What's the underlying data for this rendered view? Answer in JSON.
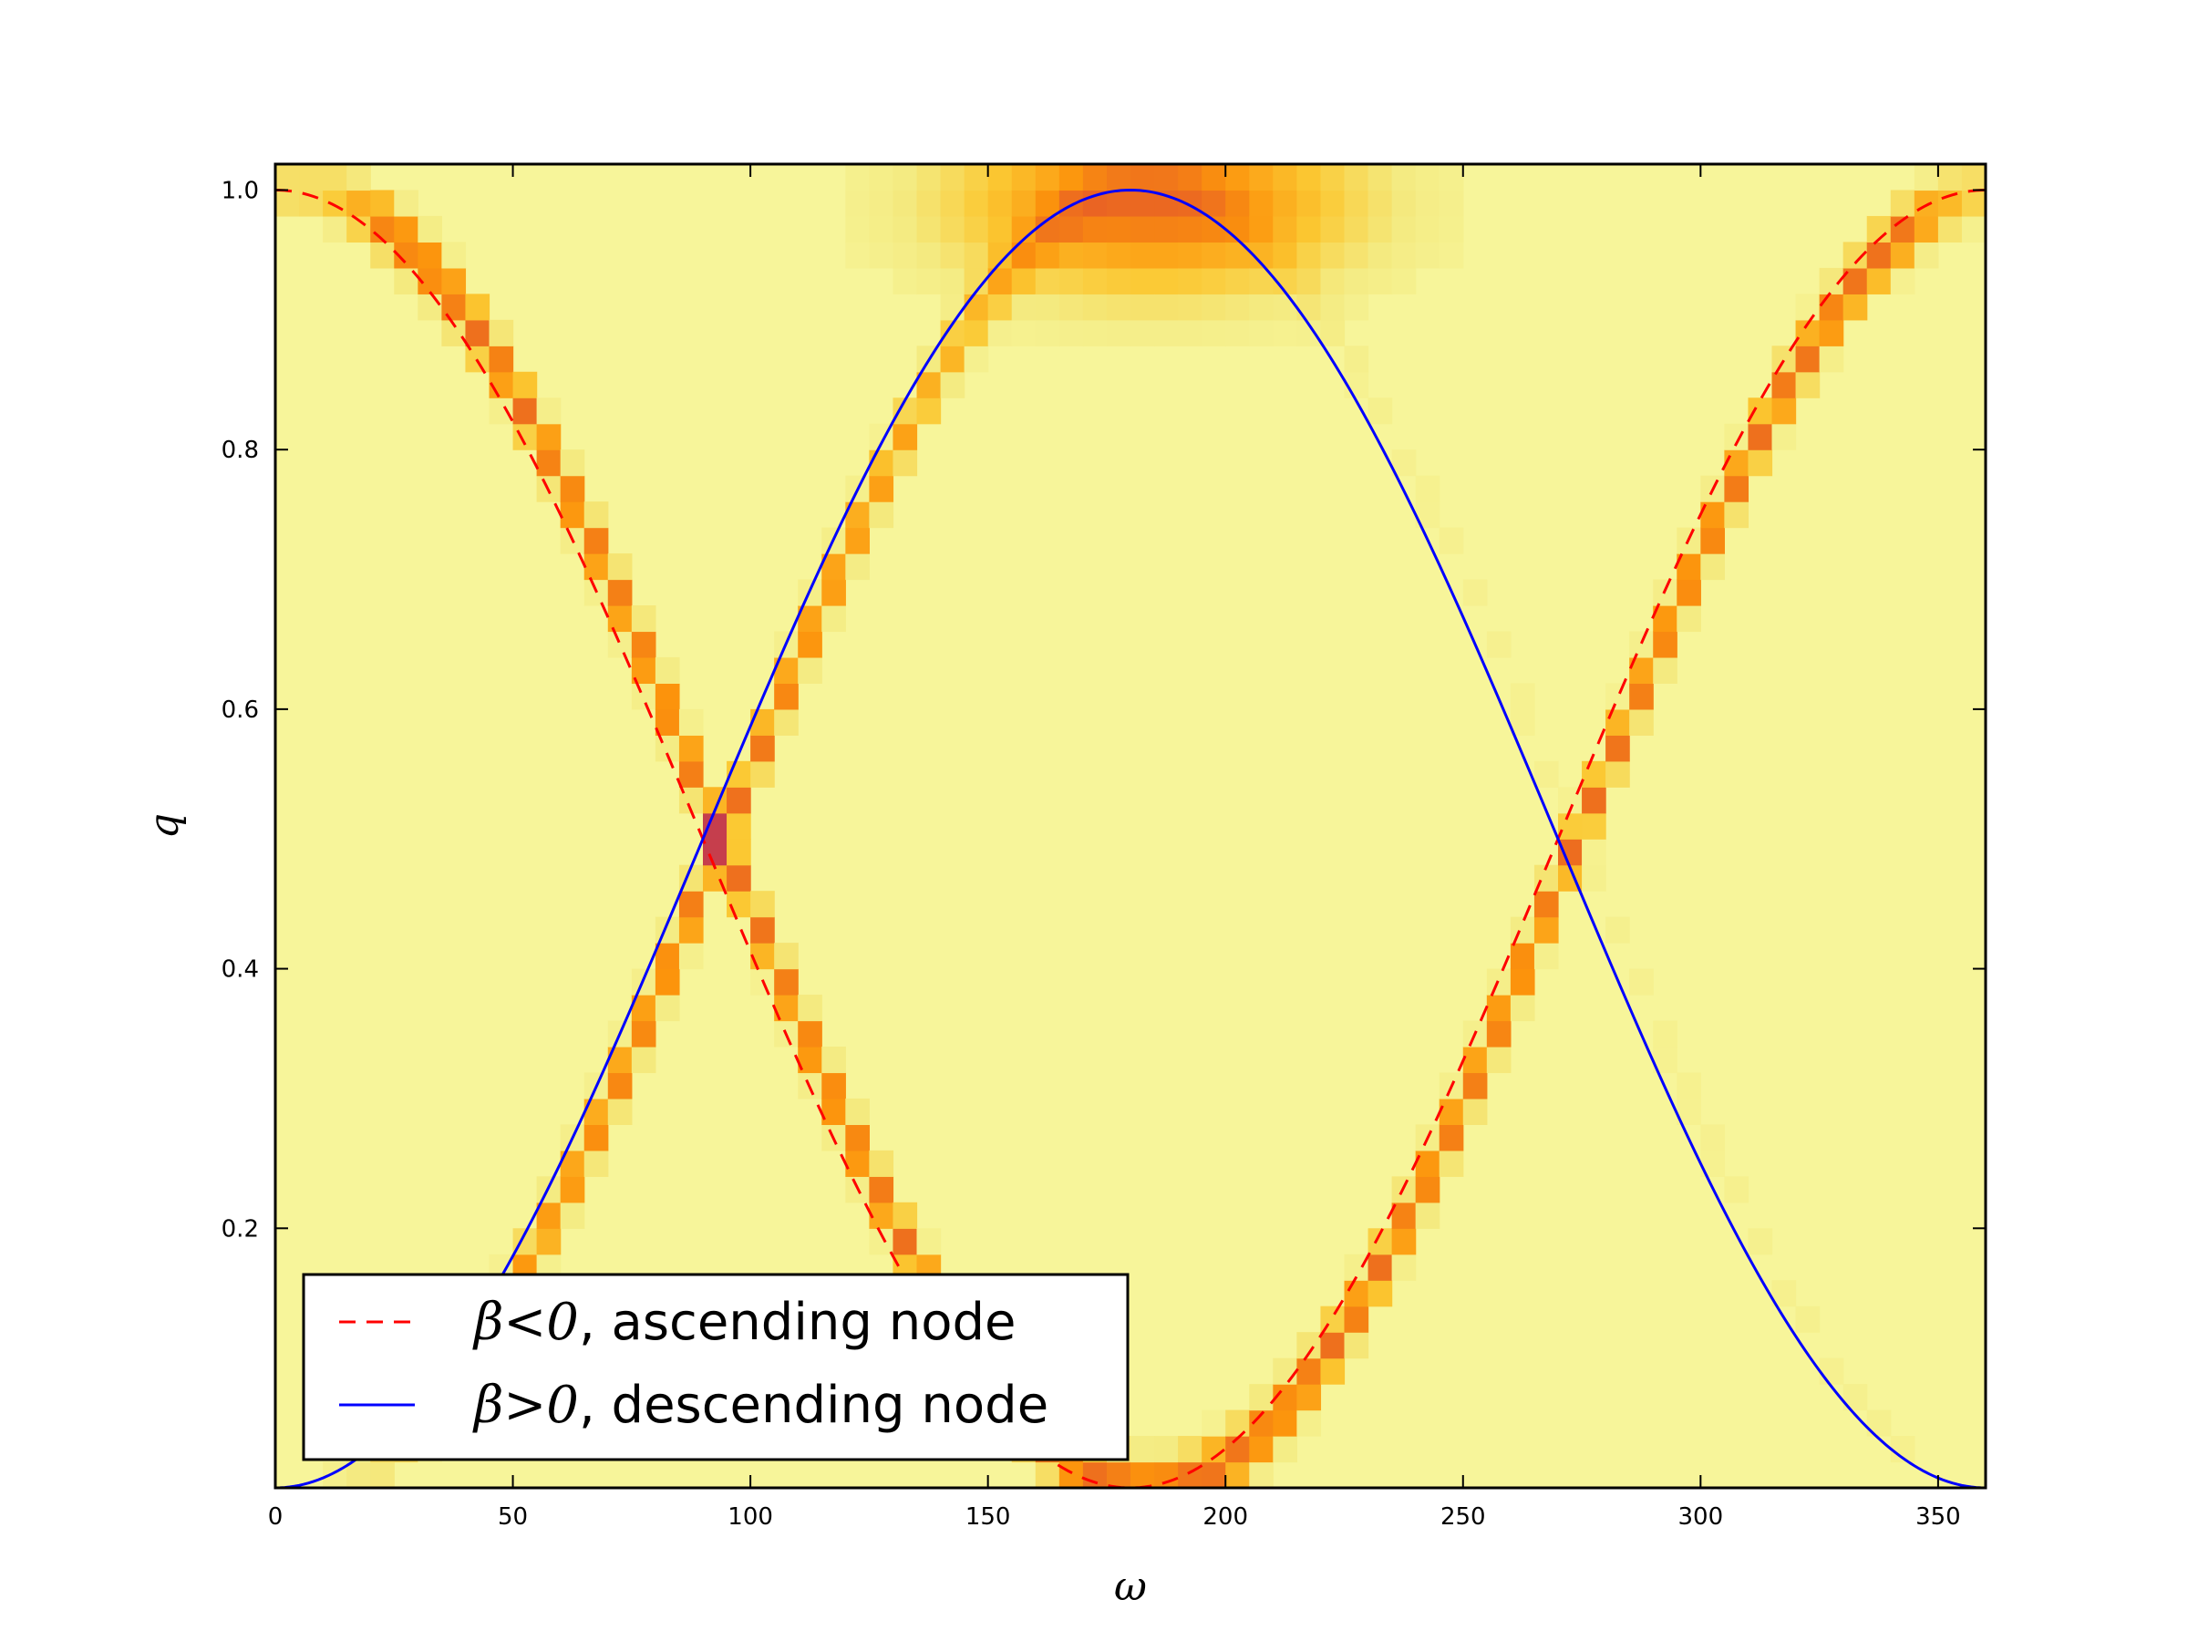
{
  "chart_data": {
    "type": "heatmap",
    "title": "",
    "xlabel": "ω",
    "ylabel": "q",
    "xlim": [
      0,
      360
    ],
    "ylim": [
      0,
      1.02
    ],
    "x_ticks": [
      "0",
      "50",
      "100",
      "150",
      "200",
      "250",
      "300",
      "350"
    ],
    "y_ticks": [
      "0.2",
      "0.4",
      "0.6",
      "0.8",
      "1.0"
    ],
    "grid": false,
    "colormap": "inferno_r",
    "heatmap_bins": {
      "x": 72,
      "y": 51
    },
    "series": [
      {
        "name": "β<0, ascending node",
        "style": "dashed",
        "color": "#ff0000",
        "function": "q = (1 + cos ω) / 2",
        "x": [
          0,
          30,
          60,
          90,
          120,
          150,
          180,
          210,
          240,
          270,
          300,
          330,
          360
        ],
        "y": [
          1.0,
          0.933,
          0.75,
          0.5,
          0.25,
          0.067,
          0.0,
          0.067,
          0.25,
          0.5,
          0.75,
          0.933,
          1.0
        ]
      },
      {
        "name": "β>0, descending node",
        "style": "solid",
        "color": "#0000ff",
        "function": "q = (1 - cos ω) / 2",
        "x": [
          0,
          30,
          60,
          90,
          120,
          150,
          180,
          210,
          240,
          270,
          300,
          330,
          360
        ],
        "y": [
          0.0,
          0.067,
          0.25,
          0.5,
          0.75,
          0.933,
          1.0,
          0.933,
          0.75,
          0.5,
          0.25,
          0.067,
          0.0
        ]
      }
    ],
    "legend": {
      "placement": "lower-left",
      "entries": [
        {
          "symbol": "β<0",
          "text": ", ascending node"
        },
        {
          "symbol": "β>0",
          "text": ", descending node"
        }
      ]
    }
  }
}
